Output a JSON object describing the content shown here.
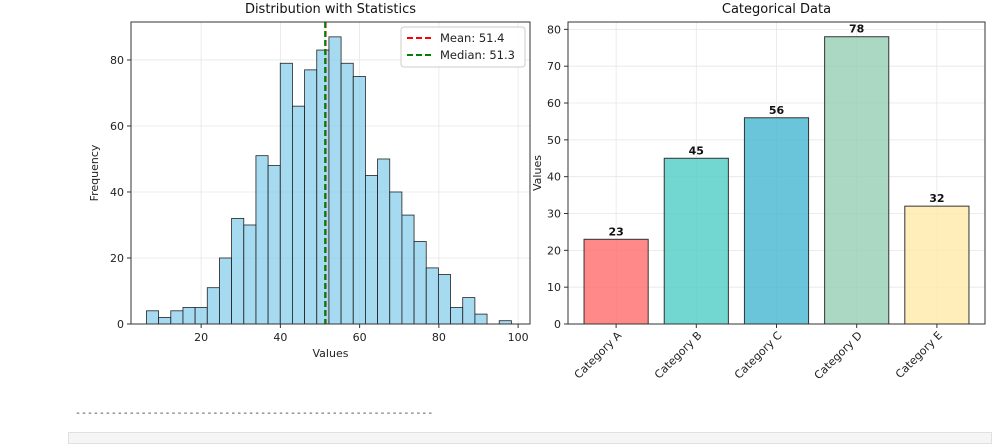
{
  "chart_data": [
    {
      "type": "bar",
      "subtype": "histogram",
      "title": "Distribution with Statistics",
      "xlabel": "Values",
      "ylabel": "Frequency",
      "bin_start": 6.2,
      "bin_width": 3.07,
      "counts": [
        4,
        2,
        4,
        5,
        5,
        11,
        20,
        32,
        30,
        51,
        48,
        79,
        66,
        77,
        83,
        87,
        79,
        75,
        45,
        50,
        40,
        33,
        25,
        17,
        15,
        5,
        8,
        3,
        0,
        1
      ],
      "xlim": [
        2.3,
        103
      ],
      "ylim": [
        0,
        91.5
      ],
      "xticks": [
        20,
        40,
        60,
        80,
        100
      ],
      "yticks": [
        0,
        20,
        40,
        60,
        80
      ],
      "bar_color": "#87CEEB",
      "grid": true,
      "lines": [
        {
          "label": "Mean: 51.4",
          "x": 51.4,
          "color": "#ff0000"
        },
        {
          "label": "Median: 51.3",
          "x": 51.3,
          "color": "#008000"
        }
      ],
      "legend_position": "top-right"
    },
    {
      "type": "bar",
      "title": "Categorical Data",
      "xlabel": "",
      "ylabel": "Values",
      "categories": [
        "Category A",
        "Category B",
        "Category C",
        "Category D",
        "Category E"
      ],
      "values": [
        23,
        45,
        56,
        78,
        32
      ],
      "labels": [
        "23",
        "45",
        "56",
        "78",
        "32"
      ],
      "colors": [
        "#FF6B6B",
        "#4ECDC4",
        "#45B7D1",
        "#96CEB4",
        "#FFEAA7"
      ],
      "ylim": [
        0,
        82
      ],
      "yticks": [
        0,
        10,
        20,
        30,
        40,
        50,
        60,
        70,
        80
      ],
      "grid": true
    }
  ],
  "output": {
    "separator": "------------------------------------------------------------"
  }
}
